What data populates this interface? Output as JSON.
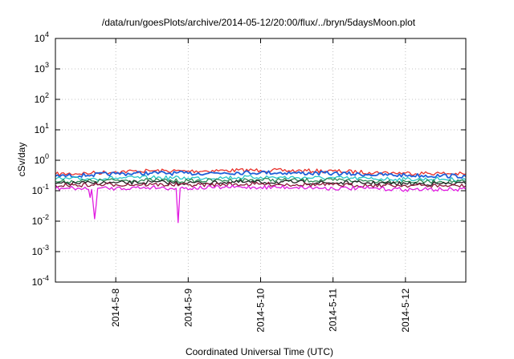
{
  "chart_data": {
    "type": "line",
    "title": "/data/run/goesPlots/archive/2014-05-12/20:00/flux/../bryn/5daysMoon.plot",
    "xlabel": "Coordinated Universal Time (UTC)",
    "ylabel": "cSv/day",
    "y_scale": "log",
    "ylim": [
      0.0001,
      10000
    ],
    "x_range": [
      "2014-05-07 04:00",
      "2014-05-12 20:00"
    ],
    "grid": true,
    "x_ticks": [
      "2014-5-8",
      "2014-5-9",
      "2014-5-10",
      "2014-5-11",
      "2014-5-12"
    ],
    "x_tick_dates": [
      "2014-05-08 00:00",
      "2014-05-09 00:00",
      "2014-05-10 00:00",
      "2014-05-11 00:00",
      "2014-05-12 00:00"
    ],
    "y_ticks": [
      {
        "value": 0.0001,
        "base": "10",
        "exp": "-4"
      },
      {
        "value": 0.001,
        "base": "10",
        "exp": "-3"
      },
      {
        "value": 0.01,
        "base": "10",
        "exp": "-2"
      },
      {
        "value": 0.1,
        "base": "10",
        "exp": "-1"
      },
      {
        "value": 1,
        "base": "10",
        "exp": "0"
      },
      {
        "value": 10,
        "base": "10",
        "exp": "1"
      },
      {
        "value": 100,
        "base": "10",
        "exp": "2"
      },
      {
        "value": 1000,
        "base": "10",
        "exp": "3"
      },
      {
        "value": 10000,
        "base": "10",
        "exp": "4"
      }
    ],
    "series": [
      {
        "color": "#e8302a",
        "x": [
          "2014-05-07 04:00",
          "2014-05-07 16:00",
          "2014-05-08 00:00",
          "2014-05-08 12:00",
          "2014-05-09 00:00",
          "2014-05-09 12:00",
          "2014-05-10 00:00",
          "2014-05-10 12:00",
          "2014-05-11 00:00",
          "2014-05-11 12:00",
          "2014-05-12 00:00",
          "2014-05-12 12:00",
          "2014-05-12 20:00"
        ],
        "values": [
          0.35,
          0.38,
          0.42,
          0.45,
          0.44,
          0.46,
          0.47,
          0.45,
          0.44,
          0.4,
          0.38,
          0.37,
          0.35
        ]
      },
      {
        "color": "#2060d8",
        "x": [
          "2014-05-07 04:00",
          "2014-05-07 16:00",
          "2014-05-08 00:00",
          "2014-05-08 12:00",
          "2014-05-09 00:00",
          "2014-05-09 12:00",
          "2014-05-10 00:00",
          "2014-05-10 12:00",
          "2014-05-11 00:00",
          "2014-05-11 12:00",
          "2014-05-12 00:00",
          "2014-05-12 12:00",
          "2014-05-12 20:00"
        ],
        "values": [
          0.3,
          0.33,
          0.36,
          0.38,
          0.37,
          0.39,
          0.4,
          0.38,
          0.37,
          0.34,
          0.32,
          0.31,
          0.3
        ]
      },
      {
        "color": "#26c6c6",
        "x": [
          "2014-05-07 04:00",
          "2014-05-07 16:00",
          "2014-05-08 00:00",
          "2014-05-08 12:00",
          "2014-05-09 00:00",
          "2014-05-09 12:00",
          "2014-05-10 00:00",
          "2014-05-10 12:00",
          "2014-05-11 00:00",
          "2014-05-11 12:00",
          "2014-05-12 00:00",
          "2014-05-12 12:00",
          "2014-05-12 20:00"
        ],
        "values": [
          0.24,
          0.25,
          0.26,
          0.27,
          0.26,
          0.27,
          0.28,
          0.27,
          0.26,
          0.25,
          0.24,
          0.24,
          0.23
        ]
      },
      {
        "color": "#2e8b57",
        "x": [
          "2014-05-07 04:00",
          "2014-05-07 16:00",
          "2014-05-08 00:00",
          "2014-05-08 12:00",
          "2014-05-09 00:00",
          "2014-05-09 12:00",
          "2014-05-10 00:00",
          "2014-05-10 12:00",
          "2014-05-11 00:00",
          "2014-05-11 12:00",
          "2014-05-12 00:00",
          "2014-05-12 12:00",
          "2014-05-12 20:00"
        ],
        "values": [
          0.2,
          0.21,
          0.22,
          0.22,
          0.21,
          0.22,
          0.23,
          0.22,
          0.22,
          0.21,
          0.2,
          0.2,
          0.2
        ]
      },
      {
        "color": "#222222",
        "x": [
          "2014-05-07 04:00",
          "2014-05-07 16:00",
          "2014-05-08 00:00",
          "2014-05-08 12:00",
          "2014-05-09 00:00",
          "2014-05-09 12:00",
          "2014-05-10 00:00",
          "2014-05-10 12:00",
          "2014-05-11 00:00",
          "2014-05-11 12:00",
          "2014-05-12 00:00",
          "2014-05-12 12:00",
          "2014-05-12 20:00"
        ],
        "values": [
          0.17,
          0.18,
          0.18,
          0.19,
          0.18,
          0.19,
          0.19,
          0.19,
          0.18,
          0.18,
          0.17,
          0.17,
          0.17
        ]
      },
      {
        "color": "#8b1a3a",
        "x": [
          "2014-05-07 04:00",
          "2014-05-07 16:00",
          "2014-05-08 00:00",
          "2014-05-08 12:00",
          "2014-05-09 00:00",
          "2014-05-09 12:00",
          "2014-05-10 00:00",
          "2014-05-10 12:00",
          "2014-05-11 00:00",
          "2014-05-11 12:00",
          "2014-05-12 00:00",
          "2014-05-12 12:00",
          "2014-05-12 20:00"
        ],
        "values": [
          0.15,
          0.155,
          0.16,
          0.16,
          0.155,
          0.16,
          0.165,
          0.16,
          0.155,
          0.15,
          0.15,
          0.145,
          0.145
        ]
      },
      {
        "color": "#e11be1",
        "x": [
          "2014-05-07 04:00",
          "2014-05-07 12:00",
          "2014-05-07 15:00",
          "2014-05-07 15:30",
          "2014-05-07 16:00",
          "2014-05-07 17:00",
          "2014-05-07 18:00",
          "2014-05-08 00:00",
          "2014-05-08 12:00",
          "2014-05-08 20:00",
          "2014-05-08 20:40",
          "2014-05-08 21:20",
          "2014-05-09 12:00",
          "2014-05-10 00:00",
          "2014-05-10 12:00",
          "2014-05-11 00:00",
          "2014-05-11 12:00",
          "2014-05-12 00:00",
          "2014-05-12 12:00",
          "2014-05-12 20:00"
        ],
        "values": [
          0.12,
          0.12,
          0.11,
          0.06,
          0.11,
          0.012,
          0.12,
          0.12,
          0.13,
          0.12,
          0.009,
          0.12,
          0.13,
          0.13,
          0.13,
          0.12,
          0.12,
          0.11,
          0.11,
          0.11
        ]
      }
    ]
  }
}
